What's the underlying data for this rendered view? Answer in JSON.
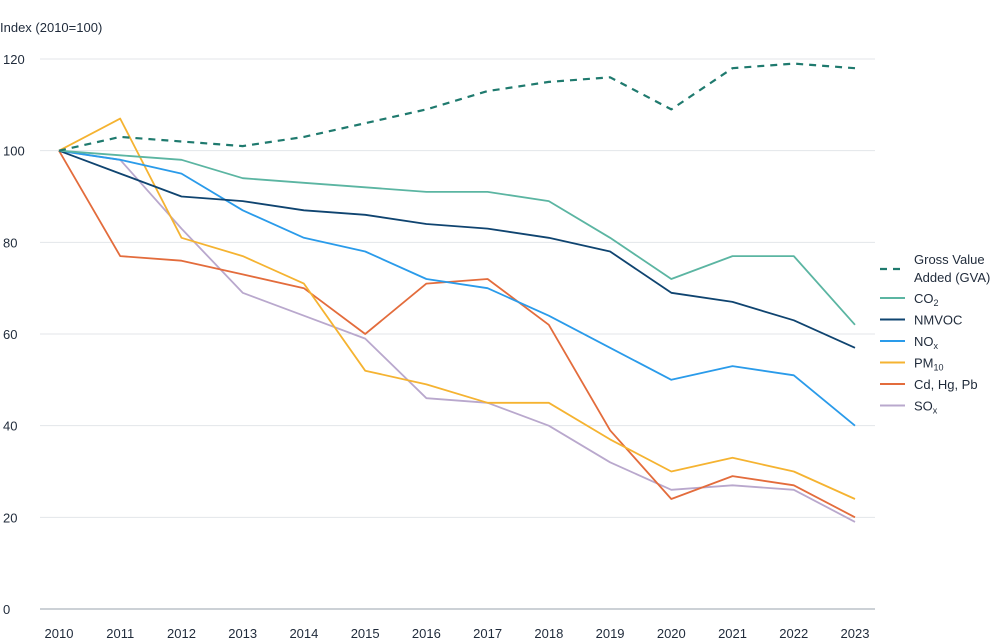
{
  "chart_data": {
    "type": "line",
    "ylabel": "Index (2010=100)",
    "ylim": [
      0,
      120
    ],
    "yticks": [
      0,
      20,
      40,
      60,
      80,
      100,
      120
    ],
    "grid": true,
    "legend_position": "right",
    "x": [
      "2010",
      "2011",
      "2012",
      "2013",
      "2014",
      "2015",
      "2016",
      "2017",
      "2018",
      "2019",
      "2020",
      "2021",
      "2022",
      "2023"
    ],
    "series": [
      {
        "name": "Gross Value Added (GVA)",
        "label_lines": [
          "Gross Value",
          "Added (GVA)"
        ],
        "color": "#1f7a6e",
        "dashed": true,
        "values": [
          100,
          103,
          102,
          101,
          103,
          106,
          109,
          113,
          115,
          116,
          109,
          118,
          119,
          118
        ]
      },
      {
        "name": "CO2",
        "label_main": "CO",
        "label_sub": "2",
        "color": "#5bb5a2",
        "dashed": false,
        "values": [
          100,
          99,
          98,
          94,
          93,
          92,
          91,
          91,
          89,
          81,
          72,
          77,
          77,
          62
        ]
      },
      {
        "name": "NMVOC",
        "label_main": "NMVOC",
        "label_sub": "",
        "color": "#0f4470",
        "dashed": false,
        "values": [
          100,
          95,
          90,
          89,
          87,
          86,
          84,
          83,
          81,
          78,
          69,
          67,
          63,
          57
        ]
      },
      {
        "name": "NOx",
        "label_main": "NO",
        "label_sub": "x",
        "color": "#2a9bea",
        "dashed": false,
        "values": [
          100,
          98,
          95,
          87,
          81,
          78,
          72,
          70,
          64,
          57,
          50,
          53,
          51,
          40
        ]
      },
      {
        "name": "PM10",
        "label_main": "PM",
        "label_sub": "10",
        "color": "#f5b331",
        "dashed": false,
        "values": [
          100,
          107,
          81,
          77,
          71,
          52,
          49,
          45,
          45,
          37,
          30,
          33,
          30,
          24
        ]
      },
      {
        "name": "Cd, Hg, Pb",
        "label_main": "Cd, Hg, Pb",
        "label_sub": "",
        "color": "#e36c3c",
        "dashed": false,
        "values": [
          100,
          77,
          76,
          73,
          70,
          60,
          71,
          72,
          62,
          39,
          24,
          29,
          27,
          20
        ]
      },
      {
        "name": "SOx",
        "label_main": "SO",
        "label_sub": "x",
        "color": "#b9a8cd",
        "dashed": false,
        "values": [
          100,
          98,
          83,
          69,
          64,
          59,
          46,
          45,
          40,
          32,
          26,
          27,
          26,
          19
        ]
      }
    ]
  }
}
